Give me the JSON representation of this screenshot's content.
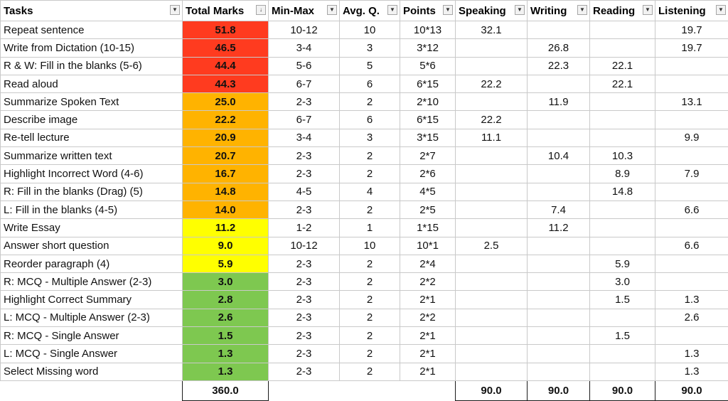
{
  "colors": {
    "red": "#ff3b1f",
    "orange": "#ffb300",
    "yellow": "#ffff00",
    "green": "#7ec850",
    "grid": "#c9c9c9"
  },
  "headers": [
    "Tasks",
    "Total Marks",
    "Min-Max",
    "Avg. Q.",
    "Points",
    "Speaking",
    "Writing",
    "Reading",
    "Listening"
  ],
  "filter_icons": [
    "dropdown-arrow-icon",
    "sorted-filter-icon"
  ],
  "rows": [
    {
      "task": "Repeat sentence",
      "total": "51.8",
      "band": "red",
      "minmax": "10-12",
      "avg": "10",
      "points": "10*13",
      "speaking": "32.1",
      "writing": "",
      "reading": "",
      "listening": "19.7"
    },
    {
      "task": "Write from Dictation (10-15)",
      "total": "46.5",
      "band": "red",
      "minmax": "3-4",
      "avg": "3",
      "points": "3*12",
      "speaking": "",
      "writing": "26.8",
      "reading": "",
      "listening": "19.7"
    },
    {
      "task": "R & W: Fill in the blanks (5-6)",
      "total": "44.4",
      "band": "red",
      "minmax": "5-6",
      "avg": "5",
      "points": "5*6",
      "speaking": "",
      "writing": "22.3",
      "reading": "22.1",
      "listening": ""
    },
    {
      "task": "Read aloud",
      "total": "44.3",
      "band": "red",
      "minmax": "6-7",
      "avg": "6",
      "points": "6*15",
      "speaking": "22.2",
      "writing": "",
      "reading": "22.1",
      "listening": ""
    },
    {
      "task": "Summarize Spoken Text",
      "total": "25.0",
      "band": "orange",
      "minmax": "2-3",
      "avg": "2",
      "points": "2*10",
      "speaking": "",
      "writing": "11.9",
      "reading": "",
      "listening": "13.1"
    },
    {
      "task": "Describe image",
      "total": "22.2",
      "band": "orange",
      "minmax": "6-7",
      "avg": "6",
      "points": "6*15",
      "speaking": "22.2",
      "writing": "",
      "reading": "",
      "listening": ""
    },
    {
      "task": "Re-tell lecture",
      "total": "20.9",
      "band": "orange",
      "minmax": "3-4",
      "avg": "3",
      "points": "3*15",
      "speaking": "11.1",
      "writing": "",
      "reading": "",
      "listening": "9.9"
    },
    {
      "task": "Summarize written text",
      "total": "20.7",
      "band": "orange",
      "minmax": "2-3",
      "avg": "2",
      "points": "2*7",
      "speaking": "",
      "writing": "10.4",
      "reading": "10.3",
      "listening": ""
    },
    {
      "task": "Highlight Incorrect Word (4-6)",
      "total": "16.7",
      "band": "orange",
      "minmax": "2-3",
      "avg": "2",
      "points": "2*6",
      "speaking": "",
      "writing": "",
      "reading": "8.9",
      "listening": "7.9"
    },
    {
      "task": "R: Fill in the blanks (Drag) (5)",
      "total": "14.8",
      "band": "orange",
      "minmax": "4-5",
      "avg": "4",
      "points": "4*5",
      "speaking": "",
      "writing": "",
      "reading": "14.8",
      "listening": ""
    },
    {
      "task": "L: Fill in the blanks (4-5)",
      "total": "14.0",
      "band": "orange",
      "minmax": "2-3",
      "avg": "2",
      "points": "2*5",
      "speaking": "",
      "writing": "7.4",
      "reading": "",
      "listening": "6.6"
    },
    {
      "task": "Write Essay",
      "total": "11.2",
      "band": "yellow",
      "minmax": "1-2",
      "avg": "1",
      "points": "1*15",
      "speaking": "",
      "writing": "11.2",
      "reading": "",
      "listening": ""
    },
    {
      "task": "Answer short question",
      "total": "9.0",
      "band": "yellow",
      "minmax": "10-12",
      "avg": "10",
      "points": "10*1",
      "speaking": "2.5",
      "writing": "",
      "reading": "",
      "listening": "6.6"
    },
    {
      "task": "Reorder paragraph (4)",
      "total": "5.9",
      "band": "yellow",
      "minmax": "2-3",
      "avg": "2",
      "points": "2*4",
      "speaking": "",
      "writing": "",
      "reading": "5.9",
      "listening": ""
    },
    {
      "task": "R: MCQ - Multiple Answer (2-3)",
      "total": "3.0",
      "band": "green",
      "minmax": "2-3",
      "avg": "2",
      "points": "2*2",
      "speaking": "",
      "writing": "",
      "reading": "3.0",
      "listening": ""
    },
    {
      "task": "Highlight Correct Summary",
      "total": "2.8",
      "band": "green",
      "minmax": "2-3",
      "avg": "2",
      "points": "2*1",
      "speaking": "",
      "writing": "",
      "reading": "1.5",
      "listening": "1.3"
    },
    {
      "task": "L: MCQ - Multiple Answer (2-3)",
      "total": "2.6",
      "band": "green",
      "minmax": "2-3",
      "avg": "2",
      "points": "2*2",
      "speaking": "",
      "writing": "",
      "reading": "",
      "listening": "2.6"
    },
    {
      "task": "R: MCQ - Single Answer",
      "total": "1.5",
      "band": "green",
      "minmax": "2-3",
      "avg": "2",
      "points": "2*1",
      "speaking": "",
      "writing": "",
      "reading": "1.5",
      "listening": ""
    },
    {
      "task": "L: MCQ - Single Answer",
      "total": "1.3",
      "band": "green",
      "minmax": "2-3",
      "avg": "2",
      "points": "2*1",
      "speaking": "",
      "writing": "",
      "reading": "",
      "listening": "1.3"
    },
    {
      "task": "Select Missing word",
      "total": "1.3",
      "band": "green",
      "minmax": "2-3",
      "avg": "2",
      "points": "2*1",
      "speaking": "",
      "writing": "",
      "reading": "",
      "listening": "1.3"
    }
  ],
  "totals": {
    "total": "360.0",
    "speaking": "90.0",
    "writing": "90.0",
    "reading": "90.0",
    "listening": "90.0"
  }
}
